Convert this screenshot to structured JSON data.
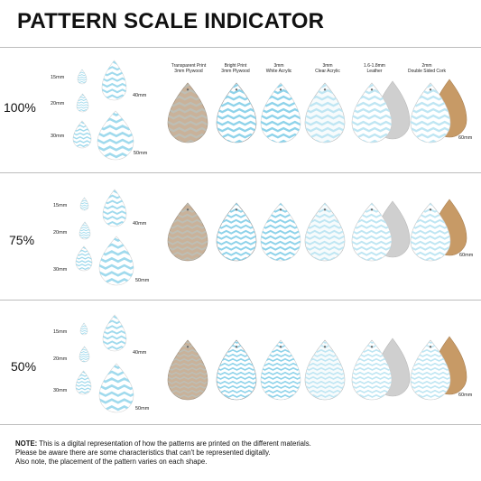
{
  "title": "PATTERN SCALE INDICATOR",
  "columns": [
    {
      "line1": "Transparent Print",
      "line2": "3mm Plywood"
    },
    {
      "line1": "Bright Print",
      "line2": "3mm Plywood"
    },
    {
      "line1": "3mm",
      "line2": "White Acrylic"
    },
    {
      "line1": "3mm",
      "line2": "Clear Acrylic"
    },
    {
      "line1": "1.6-1.8mm",
      "line2": "Leather"
    },
    {
      "line1": "2mm",
      "line2": "Double Sided Cork"
    }
  ],
  "rows": [
    {
      "scale": "100%",
      "s15": "15mm",
      "s20": "20mm",
      "s30": "30mm",
      "s40": "40mm",
      "s50": "50mm",
      "s60": "60mm"
    },
    {
      "scale": "75%",
      "s15": "15mm",
      "s20": "20mm",
      "s30": "30mm",
      "s40": "40mm",
      "s50": "50mm",
      "s60": "60mm"
    },
    {
      "scale": "50%",
      "s15": "15mm",
      "s20": "20mm",
      "s30": "30mm",
      "s40": "40mm",
      "s50": "50mm",
      "s60": "60mm"
    }
  ],
  "note": {
    "label": "NOTE:",
    "line1": " This is a digital representation of how the patterns are printed on the different materials.",
    "line2": "Please be aware there are some characteristics that can't be represented digitally.",
    "line3": "Also note, the placement of the pattern varies on each shape."
  },
  "colors": {
    "pattern": "#8fd3ea",
    "pattern_light": "#bfe6f3",
    "plywood": "#c9b29a",
    "leather_back": "#cfcfcf",
    "cork": "#c79a66"
  }
}
